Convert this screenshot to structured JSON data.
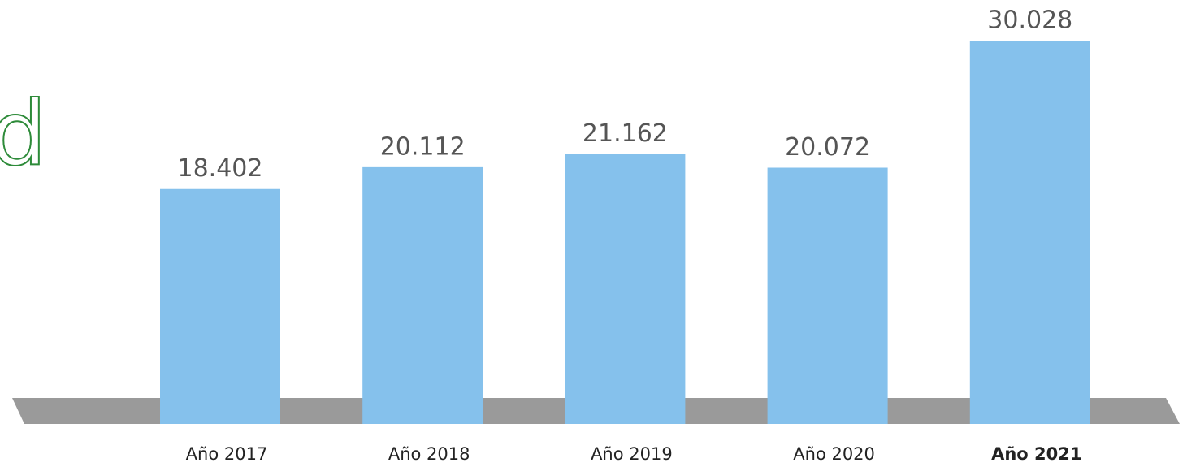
{
  "chart_data": {
    "type": "bar",
    "categories": [
      "Año 2017",
      "Año 2018",
      "Año 2019",
      "Año 2020",
      "Año 2021"
    ],
    "values": [
      18402,
      20112,
      21162,
      20072,
      30028
    ],
    "value_labels": [
      "18.402",
      "20.112",
      "21.162",
      "20.072",
      "30.028"
    ],
    "color": "#85c1ec",
    "highlight_index": 4,
    "side_text": "d"
  }
}
